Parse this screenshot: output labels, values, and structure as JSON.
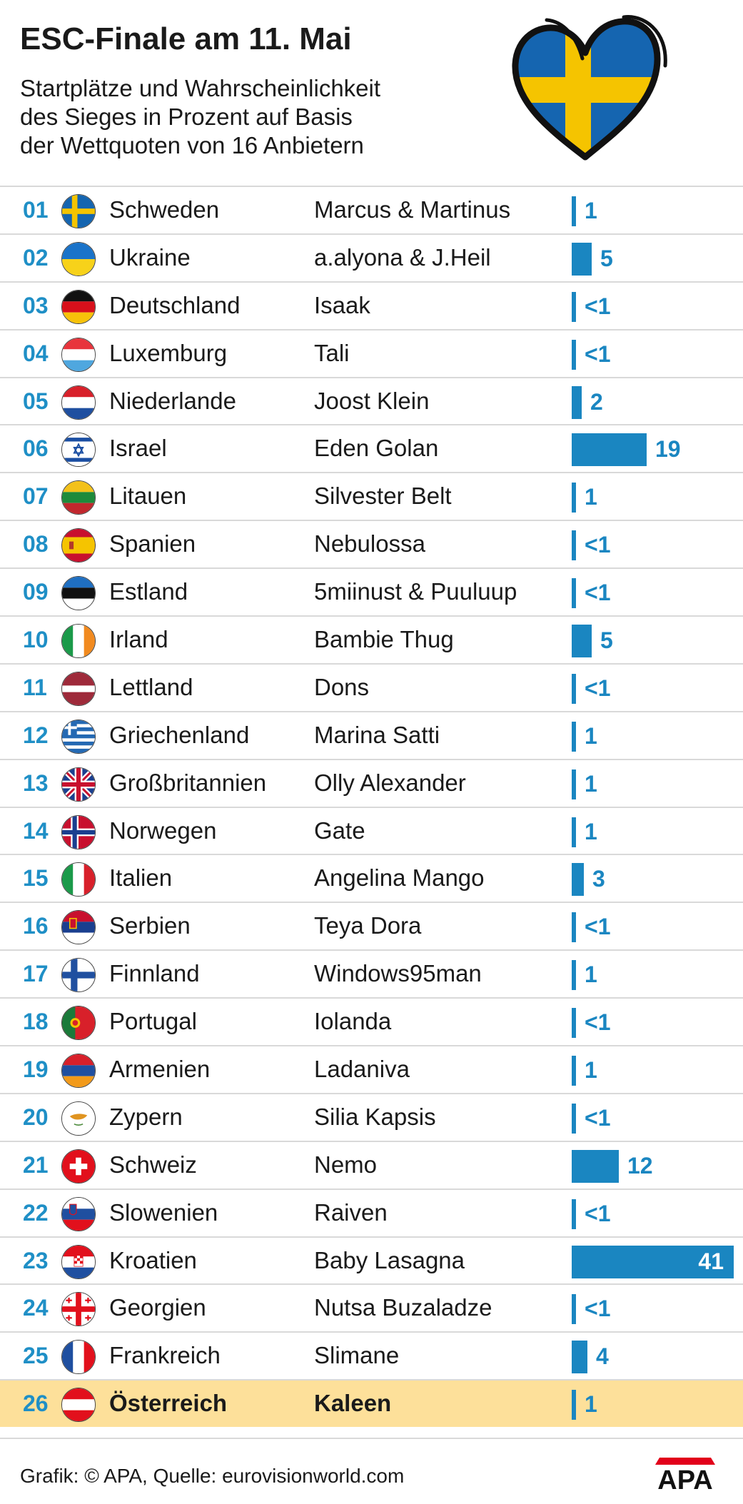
{
  "header": {
    "title": "ESC-Finale am 11. Mai",
    "subtitle_lines": [
      "Startplätze und Wahrscheinlichkeit",
      "des Sieges in Prozent auf Basis",
      "der Wettquoten von 16 Anbietern"
    ]
  },
  "footer": {
    "source": "Grafik: © APA, Quelle: eurovisionworld.com",
    "logo_text": "APA"
  },
  "colors": {
    "accent": "#1a86c1",
    "rank": "#1f8fc6",
    "highlight": "#fde09a"
  },
  "chart_data": {
    "type": "bar",
    "title": "ESC-Finale am 11. Mai",
    "highlight_rank": "26",
    "rows": [
      {
        "rank": "01",
        "country": "Schweden",
        "artist": "Marcus & Martinus",
        "value": 1,
        "label": "1"
      },
      {
        "rank": "02",
        "country": "Ukraine",
        "artist": "a.alyona & J.Heil",
        "value": 5,
        "label": "5"
      },
      {
        "rank": "03",
        "country": "Deutschland",
        "artist": "Isaak",
        "value": 0.5,
        "label": "<1"
      },
      {
        "rank": "04",
        "country": "Luxemburg",
        "artist": "Tali",
        "value": 0.5,
        "label": "<1"
      },
      {
        "rank": "05",
        "country": "Niederlande",
        "artist": "Joost Klein",
        "value": 2,
        "label": "2"
      },
      {
        "rank": "06",
        "country": "Israel",
        "artist": "Eden Golan",
        "value": 19,
        "label": "19"
      },
      {
        "rank": "07",
        "country": "Litauen",
        "artist": "Silvester Belt",
        "value": 1,
        "label": "1"
      },
      {
        "rank": "08",
        "country": "Spanien",
        "artist": "Nebulossa",
        "value": 0.5,
        "label": "<1"
      },
      {
        "rank": "09",
        "country": "Estland",
        "artist": "5miinust & Puuluup",
        "value": 0.5,
        "label": "<1"
      },
      {
        "rank": "10",
        "country": "Irland",
        "artist": "Bambie Thug",
        "value": 5,
        "label": "5"
      },
      {
        "rank": "11",
        "country": "Lettland",
        "artist": "Dons",
        "value": 0.5,
        "label": "<1"
      },
      {
        "rank": "12",
        "country": "Griechenland",
        "artist": "Marina Satti",
        "value": 1,
        "label": "1"
      },
      {
        "rank": "13",
        "country": "Großbritannien",
        "artist": "Olly Alexander",
        "value": 1,
        "label": "1"
      },
      {
        "rank": "14",
        "country": "Norwegen",
        "artist": "Gate",
        "value": 1,
        "label": "1"
      },
      {
        "rank": "15",
        "country": "Italien",
        "artist": "Angelina Mango",
        "value": 3,
        "label": "3"
      },
      {
        "rank": "16",
        "country": "Serbien",
        "artist": "Teya Dora",
        "value": 0.5,
        "label": "<1"
      },
      {
        "rank": "17",
        "country": "Finnland",
        "artist": "Windows95man",
        "value": 1,
        "label": "1"
      },
      {
        "rank": "18",
        "country": "Portugal",
        "artist": "Iolanda",
        "value": 0.5,
        "label": "<1"
      },
      {
        "rank": "19",
        "country": "Armenien",
        "artist": "Ladaniva",
        "value": 1,
        "label": "1"
      },
      {
        "rank": "20",
        "country": "Zypern",
        "artist": "Silia Kapsis",
        "value": 0.5,
        "label": "<1"
      },
      {
        "rank": "21",
        "country": "Schweiz",
        "artist": "Nemo",
        "value": 12,
        "label": "12"
      },
      {
        "rank": "22",
        "country": "Slowenien",
        "artist": "Raiven",
        "value": 0.5,
        "label": "<1"
      },
      {
        "rank": "23",
        "country": "Kroatien",
        "artist": "Baby Lasagna",
        "value": 41,
        "label": "41"
      },
      {
        "rank": "24",
        "country": "Georgien",
        "artist": "Nutsa Buzaladze",
        "value": 0.5,
        "label": "<1"
      },
      {
        "rank": "25",
        "country": "Frankreich",
        "artist": "Slimane",
        "value": 4,
        "label": "4"
      },
      {
        "rank": "26",
        "country": "Österreich",
        "artist": "Kaleen",
        "value": 1,
        "label": "1"
      }
    ]
  }
}
